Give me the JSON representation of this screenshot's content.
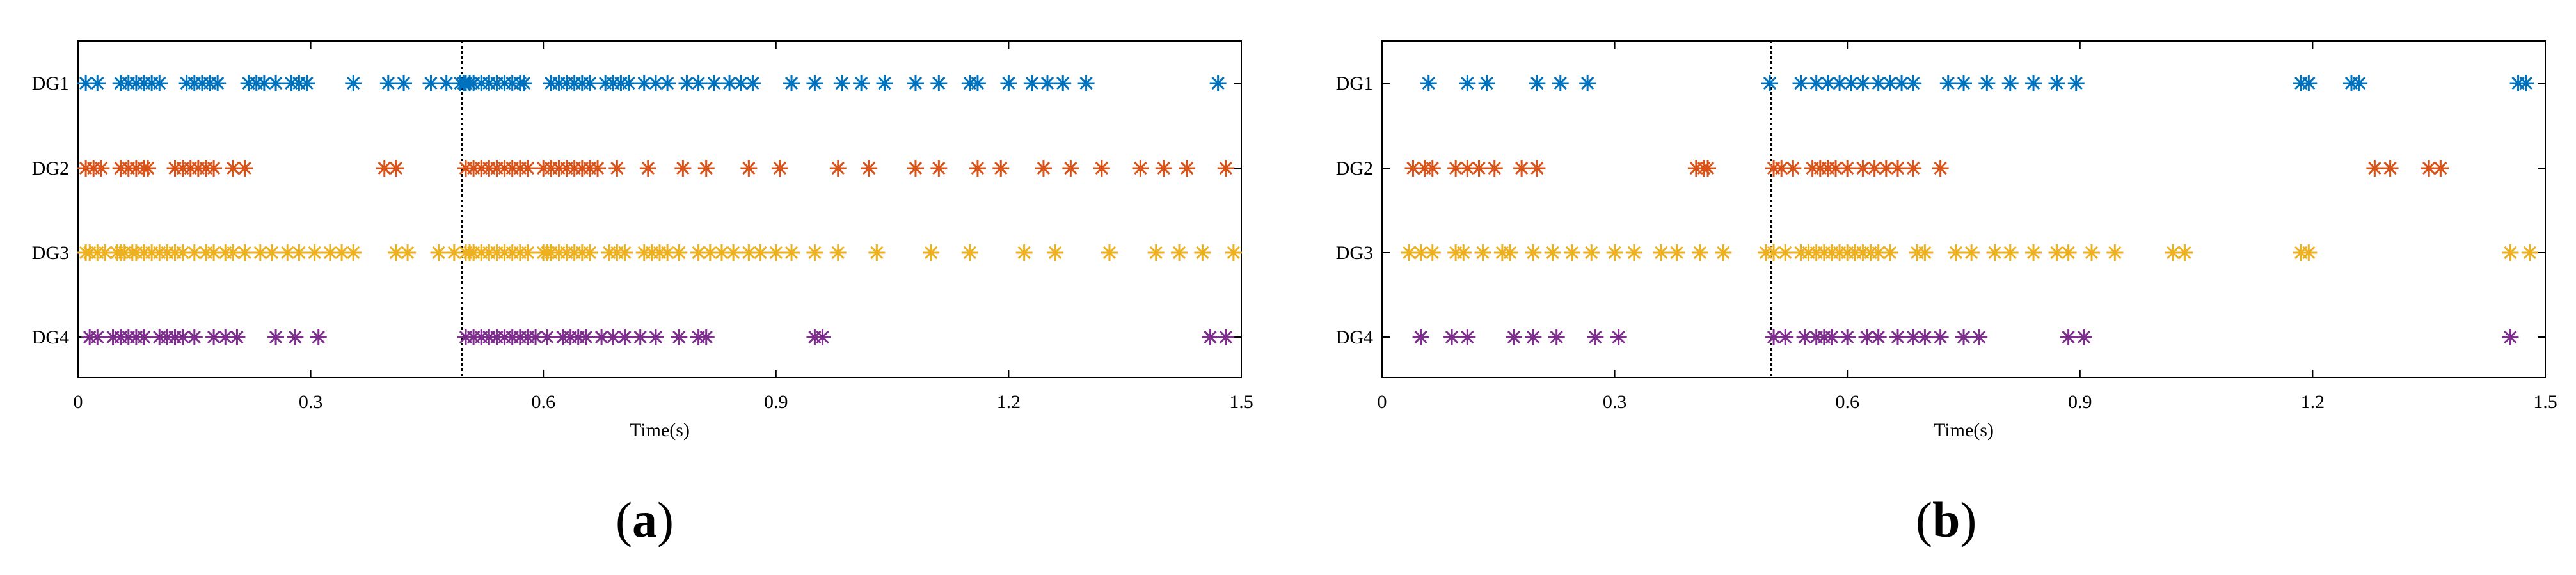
{
  "panels": [
    {
      "label_open": "(",
      "label_letter": "a",
      "label_close": ")"
    },
    {
      "label_open": "(",
      "label_letter": "b",
      "label_close": ")"
    }
  ],
  "chart_data": [
    {
      "type": "scatter",
      "marker": "asterisk",
      "title": "",
      "xlabel": "Time(s)",
      "ylabel": "",
      "xlim": [
        0,
        1.5
      ],
      "xticks": [
        0,
        0.3,
        0.6,
        0.9,
        1.2,
        1.5
      ],
      "xtick_labels": [
        "0",
        "0.3",
        "0.6",
        "0.9",
        "1.2",
        "1.5"
      ],
      "categories": [
        "DG1",
        "DG2",
        "DG3",
        "DG4"
      ],
      "event_line_x": 0.495,
      "grid": false,
      "legend": "none",
      "series": [
        {
          "color": "#0072BD",
          "x": [
            0.01,
            0.025,
            0.055,
            0.065,
            0.075,
            0.085,
            0.095,
            0.105,
            0.14,
            0.15,
            0.16,
            0.17,
            0.18,
            0.22,
            0.23,
            0.24,
            0.255,
            0.275,
            0.285,
            0.295,
            0.355,
            0.4,
            0.42,
            0.455,
            0.475,
            0.493,
            0.497,
            0.5,
            0.505,
            0.51,
            0.52,
            0.53,
            0.54,
            0.55,
            0.56,
            0.57,
            0.575,
            0.61,
            0.62,
            0.63,
            0.64,
            0.65,
            0.66,
            0.68,
            0.69,
            0.7,
            0.71,
            0.73,
            0.745,
            0.76,
            0.785,
            0.8,
            0.82,
            0.84,
            0.855,
            0.87,
            0.92,
            0.95,
            0.985,
            1.01,
            1.04,
            1.08,
            1.11,
            1.15,
            1.16,
            1.2,
            1.23,
            1.25,
            1.27,
            1.3,
            1.47
          ]
        },
        {
          "color": "#D95319",
          "x": [
            0.01,
            0.02,
            0.03,
            0.055,
            0.065,
            0.075,
            0.085,
            0.09,
            0.125,
            0.135,
            0.145,
            0.155,
            0.165,
            0.175,
            0.2,
            0.215,
            0.395,
            0.41,
            0.5,
            0.51,
            0.52,
            0.53,
            0.54,
            0.55,
            0.56,
            0.57,
            0.58,
            0.6,
            0.61,
            0.62,
            0.63,
            0.64,
            0.65,
            0.66,
            0.67,
            0.695,
            0.735,
            0.78,
            0.81,
            0.865,
            0.905,
            0.98,
            1.02,
            1.08,
            1.11,
            1.16,
            1.19,
            1.245,
            1.28,
            1.32,
            1.37,
            1.4,
            1.43,
            1.48
          ]
        },
        {
          "color": "#EDB120",
          "x": [
            0.01,
            0.015,
            0.025,
            0.035,
            0.05,
            0.055,
            0.06,
            0.07,
            0.075,
            0.085,
            0.095,
            0.105,
            0.115,
            0.125,
            0.135,
            0.15,
            0.165,
            0.175,
            0.19,
            0.2,
            0.215,
            0.235,
            0.25,
            0.27,
            0.285,
            0.305,
            0.325,
            0.34,
            0.355,
            0.41,
            0.425,
            0.465,
            0.485,
            0.5,
            0.505,
            0.51,
            0.52,
            0.53,
            0.54,
            0.55,
            0.56,
            0.57,
            0.58,
            0.6,
            0.605,
            0.61,
            0.62,
            0.63,
            0.64,
            0.65,
            0.66,
            0.685,
            0.695,
            0.705,
            0.73,
            0.74,
            0.75,
            0.76,
            0.775,
            0.8,
            0.815,
            0.83,
            0.845,
            0.865,
            0.88,
            0.9,
            0.92,
            0.95,
            0.98,
            1.03,
            1.1,
            1.15,
            1.22,
            1.26,
            1.33,
            1.39,
            1.42,
            1.45,
            1.49
          ]
        },
        {
          "color": "#7E2F8E",
          "x": [
            0.015,
            0.025,
            0.045,
            0.055,
            0.065,
            0.075,
            0.085,
            0.105,
            0.115,
            0.125,
            0.135,
            0.15,
            0.175,
            0.19,
            0.205,
            0.255,
            0.28,
            0.31,
            0.5,
            0.51,
            0.52,
            0.53,
            0.54,
            0.55,
            0.56,
            0.57,
            0.58,
            0.59,
            0.605,
            0.625,
            0.635,
            0.645,
            0.655,
            0.675,
            0.69,
            0.705,
            0.725,
            0.745,
            0.775,
            0.8,
            0.81,
            0.95,
            0.96,
            1.46,
            1.48
          ]
        }
      ]
    },
    {
      "type": "scatter",
      "marker": "asterisk",
      "title": "",
      "xlabel": "Time(s)",
      "ylabel": "",
      "xlim": [
        0,
        1.5
      ],
      "xticks": [
        0,
        0.3,
        0.6,
        0.9,
        1.2,
        1.5
      ],
      "xtick_labels": [
        "0",
        "0.3",
        "0.6",
        "0.9",
        "1.2",
        "1.5"
      ],
      "categories": [
        "DG1",
        "DG2",
        "DG3",
        "DG4"
      ],
      "event_line_x": 0.502,
      "grid": false,
      "legend": "none",
      "series": [
        {
          "color": "#0072BD",
          "x": [
            0.06,
            0.11,
            0.135,
            0.2,
            0.23,
            0.265,
            0.5,
            0.54,
            0.56,
            0.575,
            0.59,
            0.605,
            0.62,
            0.64,
            0.655,
            0.67,
            0.685,
            0.73,
            0.75,
            0.78,
            0.81,
            0.84,
            0.87,
            0.895,
            1.185,
            1.195,
            1.25,
            1.26,
            1.465,
            1.475
          ]
        },
        {
          "color": "#D95319",
          "x": [
            0.04,
            0.055,
            0.065,
            0.095,
            0.11,
            0.125,
            0.145,
            0.18,
            0.2,
            0.405,
            0.415,
            0.42,
            0.505,
            0.515,
            0.53,
            0.555,
            0.565,
            0.575,
            0.585,
            0.6,
            0.62,
            0.635,
            0.65,
            0.665,
            0.685,
            0.72,
            1.28,
            1.3,
            1.35,
            1.365
          ]
        },
        {
          "color": "#EDB120",
          "x": [
            0.035,
            0.05,
            0.065,
            0.095,
            0.105,
            0.13,
            0.155,
            0.165,
            0.195,
            0.22,
            0.245,
            0.27,
            0.3,
            0.325,
            0.36,
            0.38,
            0.41,
            0.44,
            0.495,
            0.505,
            0.52,
            0.54,
            0.55,
            0.56,
            0.57,
            0.58,
            0.59,
            0.6,
            0.61,
            0.62,
            0.63,
            0.64,
            0.655,
            0.69,
            0.7,
            0.74,
            0.76,
            0.79,
            0.81,
            0.84,
            0.87,
            0.885,
            0.915,
            0.945,
            1.02,
            1.035,
            1.185,
            1.195,
            1.455,
            1.48
          ]
        },
        {
          "color": "#7E2F8E",
          "x": [
            0.05,
            0.09,
            0.11,
            0.17,
            0.195,
            0.225,
            0.275,
            0.305,
            0.505,
            0.52,
            0.545,
            0.56,
            0.57,
            0.58,
            0.6,
            0.625,
            0.64,
            0.665,
            0.685,
            0.7,
            0.72,
            0.75,
            0.77,
            0.885,
            0.905,
            1.455
          ]
        }
      ]
    }
  ]
}
